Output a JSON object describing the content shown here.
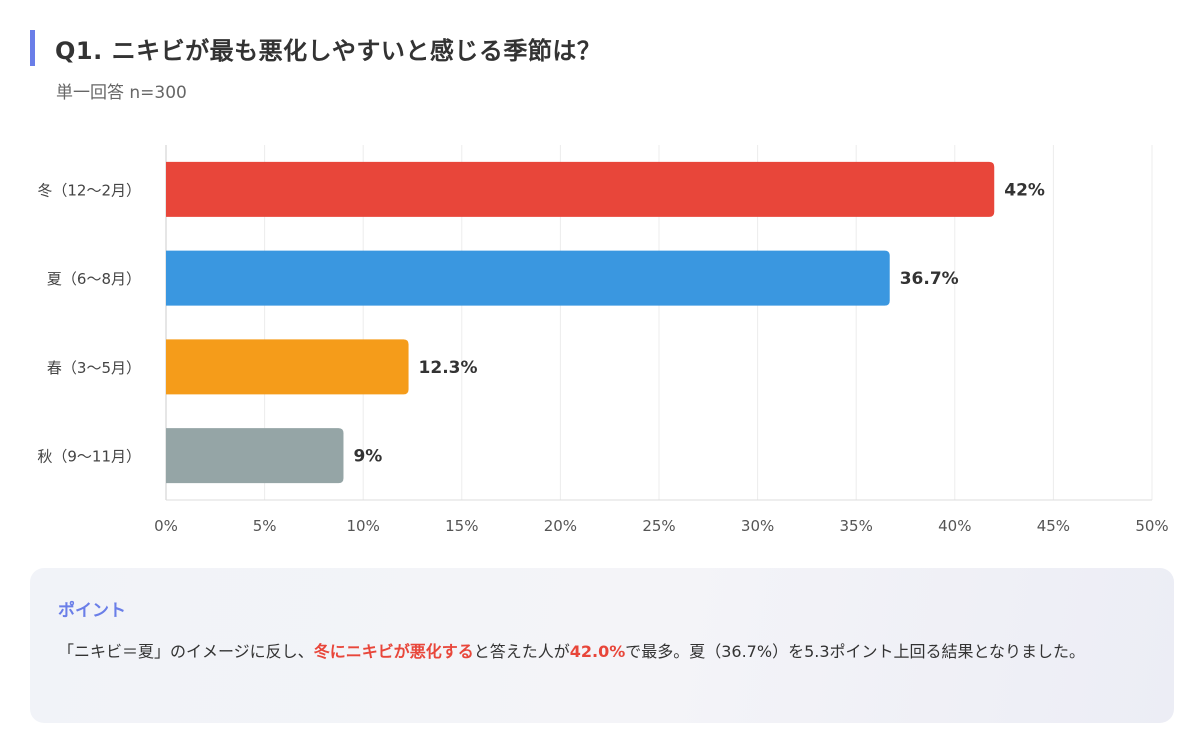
{
  "header": {
    "title": "Q1. ニキビが最も悪化しやすいと感じる季節は？",
    "subtitle": "単一回答 n=300"
  },
  "chart_data": {
    "type": "bar",
    "orientation": "horizontal",
    "categories": [
      "冬（12〜2月）",
      "夏（6〜8月）",
      "春（3〜5月）",
      "秋（9〜11月）"
    ],
    "values": [
      42,
      36.7,
      12.3,
      9
    ],
    "value_labels": [
      "42%",
      "36.7%",
      "12.3%",
      "9%"
    ],
    "colors": [
      "#e8463a",
      "#3a97e0",
      "#f59c1a",
      "#95a5a6"
    ],
    "xlim": [
      0,
      50
    ],
    "xticks": [
      "0%",
      "5%",
      "10%",
      "15%",
      "20%",
      "25%",
      "30%",
      "35%",
      "40%",
      "45%",
      "50%"
    ],
    "grid": true,
    "legend": "none"
  },
  "point": {
    "title": "ポイント",
    "text_1": "「ニキビ＝夏」のイメージに反し、",
    "highlight_1": "冬にニキビが悪化する",
    "text_2": "と答えた人が",
    "highlight_2": "42.0%",
    "text_3": "で最多。夏（36.7%）を5.3ポイント上回る結果となりました。"
  },
  "accent_color": "#6a7ee8"
}
